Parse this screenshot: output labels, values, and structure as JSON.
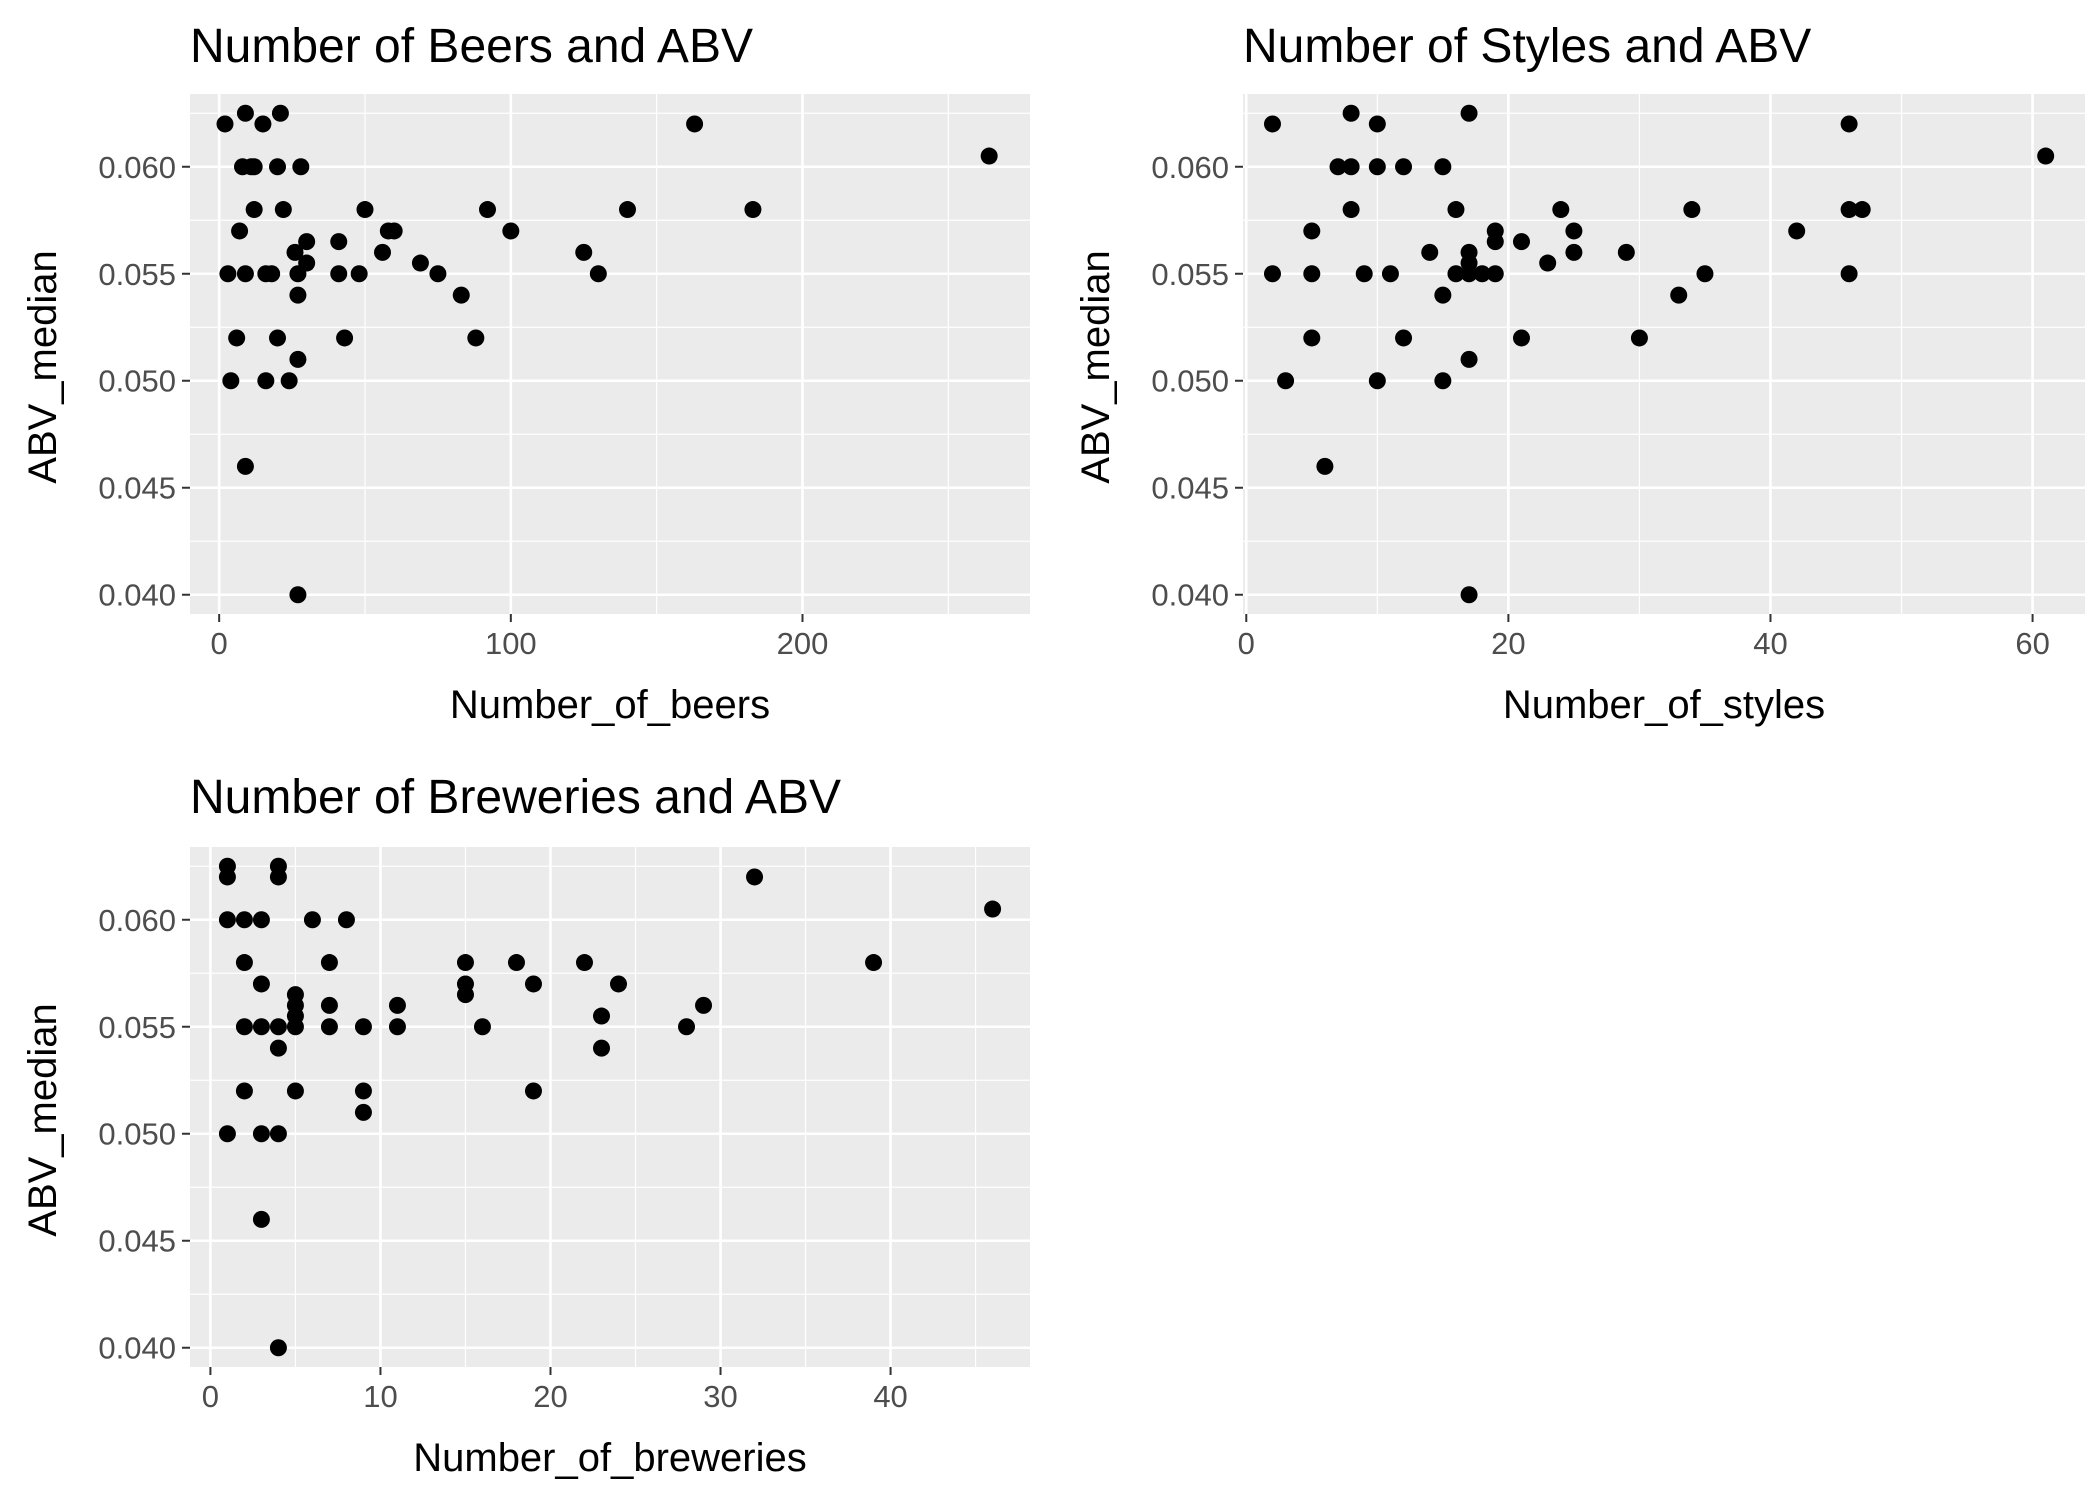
{
  "chart_data": [
    {
      "type": "scatter",
      "title": "Number of Beers and ABV",
      "xlabel": "Number_of_beers",
      "ylabel": "ABV_median",
      "xlim": [
        -10,
        278
      ],
      "ylim": [
        0.0391,
        0.0634
      ],
      "xticks": [
        0,
        100,
        200
      ],
      "xtick_labels": [
        "0",
        "100",
        "200"
      ],
      "yticks": [
        0.04,
        0.045,
        0.05,
        0.055,
        0.06
      ],
      "ytick_labels": [
        "0.040",
        "0.045",
        "0.050",
        "0.055",
        "0.060"
      ],
      "grid": true,
      "panel_background": "#ebebeb",
      "point_color": "#000000",
      "points": [
        [
          2,
          0.062
        ],
        [
          9,
          0.0625
        ],
        [
          15,
          0.062
        ],
        [
          21,
          0.0625
        ],
        [
          163,
          0.062
        ],
        [
          264,
          0.0605
        ],
        [
          8,
          0.06
        ],
        [
          11,
          0.06
        ],
        [
          12,
          0.06
        ],
        [
          20,
          0.06
        ],
        [
          28,
          0.06
        ],
        [
          12,
          0.058
        ],
        [
          22,
          0.058
        ],
        [
          50,
          0.058
        ],
        [
          92,
          0.058
        ],
        [
          140,
          0.058
        ],
        [
          183,
          0.058
        ],
        [
          7,
          0.057
        ],
        [
          58,
          0.057
        ],
        [
          60,
          0.057
        ],
        [
          100,
          0.057
        ],
        [
          30,
          0.0565
        ],
        [
          41,
          0.0565
        ],
        [
          26,
          0.056
        ],
        [
          56,
          0.056
        ],
        [
          125,
          0.056
        ],
        [
          30,
          0.0555
        ],
        [
          69,
          0.0555
        ],
        [
          3,
          0.055
        ],
        [
          9,
          0.055
        ],
        [
          16,
          0.055
        ],
        [
          18,
          0.055
        ],
        [
          27,
          0.055
        ],
        [
          41,
          0.055
        ],
        [
          48,
          0.055
        ],
        [
          75,
          0.055
        ],
        [
          130,
          0.055
        ],
        [
          27,
          0.054
        ],
        [
          83,
          0.054
        ],
        [
          6,
          0.052
        ],
        [
          20,
          0.052
        ],
        [
          43,
          0.052
        ],
        [
          88,
          0.052
        ],
        [
          27,
          0.051
        ],
        [
          4,
          0.05
        ],
        [
          16,
          0.05
        ],
        [
          24,
          0.05
        ],
        [
          9,
          0.046
        ],
        [
          27,
          0.04
        ]
      ]
    },
    {
      "type": "scatter",
      "title": "Number of Styles and ABV",
      "xlabel": "Number_of_styles",
      "ylabel": "ABV_median",
      "xlim": [
        -0.25,
        64
      ],
      "ylim": [
        0.0391,
        0.0634
      ],
      "xticks": [
        0,
        20,
        40,
        60
      ],
      "xtick_labels": [
        "0",
        "20",
        "40",
        "60"
      ],
      "yticks": [
        0.04,
        0.045,
        0.05,
        0.055,
        0.06
      ],
      "ytick_labels": [
        "0.040",
        "0.045",
        "0.050",
        "0.055",
        "0.060"
      ],
      "grid": true,
      "panel_background": "#ebebeb",
      "point_color": "#000000",
      "points": [
        [
          2,
          0.062
        ],
        [
          8,
          0.0625
        ],
        [
          10,
          0.062
        ],
        [
          17,
          0.0625
        ],
        [
          46,
          0.062
        ],
        [
          61,
          0.0605
        ],
        [
          7,
          0.06
        ],
        [
          8,
          0.06
        ],
        [
          10,
          0.06
        ],
        [
          12,
          0.06
        ],
        [
          15,
          0.06
        ],
        [
          8,
          0.058
        ],
        [
          16,
          0.058
        ],
        [
          24,
          0.058
        ],
        [
          34,
          0.058
        ],
        [
          46,
          0.058
        ],
        [
          47,
          0.058
        ],
        [
          5,
          0.057
        ],
        [
          19,
          0.057
        ],
        [
          25,
          0.057
        ],
        [
          42,
          0.057
        ],
        [
          19,
          0.0565
        ],
        [
          21,
          0.0565
        ],
        [
          14,
          0.056
        ],
        [
          17,
          0.056
        ],
        [
          25,
          0.056
        ],
        [
          29,
          0.056
        ],
        [
          17,
          0.0555
        ],
        [
          23,
          0.0555
        ],
        [
          2,
          0.055
        ],
        [
          5,
          0.055
        ],
        [
          9,
          0.055
        ],
        [
          11,
          0.055
        ],
        [
          16,
          0.055
        ],
        [
          17,
          0.055
        ],
        [
          18,
          0.055
        ],
        [
          19,
          0.055
        ],
        [
          35,
          0.055
        ],
        [
          46,
          0.055
        ],
        [
          15,
          0.054
        ],
        [
          33,
          0.054
        ],
        [
          5,
          0.052
        ],
        [
          12,
          0.052
        ],
        [
          21,
          0.052
        ],
        [
          30,
          0.052
        ],
        [
          17,
          0.051
        ],
        [
          3,
          0.05
        ],
        [
          10,
          0.05
        ],
        [
          15,
          0.05
        ],
        [
          6,
          0.046
        ],
        [
          17,
          0.04
        ]
      ]
    },
    {
      "type": "scatter",
      "title": "Number of Breweries and ABV",
      "xlabel": "Number_of_breweries",
      "ylabel": "ABV_median",
      "xlim": [
        -1.2,
        48.2
      ],
      "ylim": [
        0.0391,
        0.0634
      ],
      "xticks": [
        0,
        10,
        20,
        30,
        40
      ],
      "xtick_labels": [
        "0",
        "10",
        "20",
        "30",
        "40"
      ],
      "yticks": [
        0.04,
        0.045,
        0.05,
        0.055,
        0.06
      ],
      "ytick_labels": [
        "0.040",
        "0.045",
        "0.050",
        "0.055",
        "0.060"
      ],
      "grid": true,
      "panel_background": "#ebebeb",
      "point_color": "#000000",
      "points": [
        [
          1,
          0.0625
        ],
        [
          1,
          0.062
        ],
        [
          4,
          0.0625
        ],
        [
          4,
          0.062
        ],
        [
          32,
          0.062
        ],
        [
          46,
          0.0605
        ],
        [
          1,
          0.06
        ],
        [
          2,
          0.06
        ],
        [
          3,
          0.06
        ],
        [
          6,
          0.06
        ],
        [
          8,
          0.06
        ],
        [
          2,
          0.058
        ],
        [
          7,
          0.058
        ],
        [
          15,
          0.058
        ],
        [
          18,
          0.058
        ],
        [
          22,
          0.058
        ],
        [
          39,
          0.058
        ],
        [
          3,
          0.057
        ],
        [
          15,
          0.057
        ],
        [
          19,
          0.057
        ],
        [
          24,
          0.057
        ],
        [
          5,
          0.0565
        ],
        [
          15,
          0.0565
        ],
        [
          5,
          0.056
        ],
        [
          7,
          0.056
        ],
        [
          11,
          0.056
        ],
        [
          29,
          0.056
        ],
        [
          5,
          0.0555
        ],
        [
          23,
          0.0555
        ],
        [
          2,
          0.055
        ],
        [
          3,
          0.055
        ],
        [
          4,
          0.055
        ],
        [
          5,
          0.055
        ],
        [
          7,
          0.055
        ],
        [
          9,
          0.055
        ],
        [
          11,
          0.055
        ],
        [
          16,
          0.055
        ],
        [
          28,
          0.055
        ],
        [
          4,
          0.054
        ],
        [
          23,
          0.054
        ],
        [
          2,
          0.052
        ],
        [
          5,
          0.052
        ],
        [
          9,
          0.052
        ],
        [
          19,
          0.052
        ],
        [
          9,
          0.051
        ],
        [
          1,
          0.05
        ],
        [
          3,
          0.05
        ],
        [
          4,
          0.05
        ],
        [
          3,
          0.046
        ],
        [
          4,
          0.04
        ]
      ]
    }
  ]
}
